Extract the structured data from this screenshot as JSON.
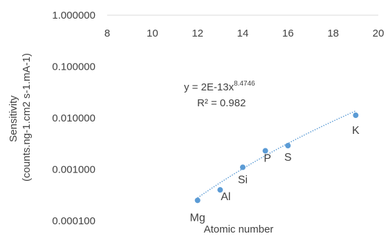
{
  "chart_data": {
    "type": "scatter",
    "title": "",
    "xlabel": "Atomic number",
    "ylabel": [
      "Sensitivity",
      "(counts.ng-1.cm2 s-1.mA-1)"
    ],
    "xlim": [
      8,
      20
    ],
    "ylim": [
      0.0001,
      1
    ],
    "y_scale": "log",
    "x_ticks": [
      "8",
      "10",
      "12",
      "14",
      "16",
      "18",
      "20"
    ],
    "x_tick_values": [
      8,
      10,
      12,
      14,
      16,
      18,
      20
    ],
    "y_ticks": [
      "1.000000",
      "0.100000",
      "0.010000",
      "0.001000",
      "0.000100"
    ],
    "y_tick_values": [
      1,
      0.1,
      0.01,
      0.001,
      0.0001
    ],
    "grid": false,
    "marker_color": "#5b9bd5",
    "trendline": {
      "type": "power",
      "coefficient": 2e-13,
      "exponent": 8.4746,
      "x_range": [
        12,
        19
      ],
      "equation_base": "y = 2E-13x",
      "equation_exponent": "8.4746",
      "r_squared_label": "R² = 0.982"
    },
    "points": [
      {
        "label": "Mg",
        "x": 12,
        "y": 0.00025
      },
      {
        "label": "Al",
        "x": 13,
        "y": 0.0004
      },
      {
        "label": "Si",
        "x": 14,
        "y": 0.0011
      },
      {
        "label": "P",
        "x": 15,
        "y": 0.0023
      },
      {
        "label": "S",
        "x": 16,
        "y": 0.0029
      },
      {
        "label": "K",
        "x": 19,
        "y": 0.0113
      }
    ]
  }
}
